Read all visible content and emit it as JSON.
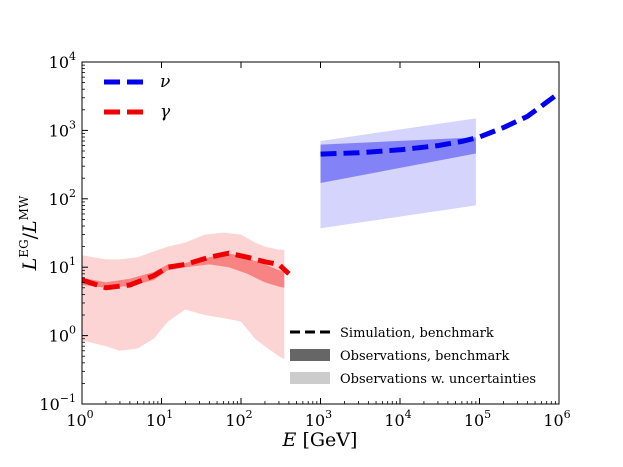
{
  "chart_data": {
    "type": "line",
    "title": "",
    "xlabel": "E [GeV]",
    "ylabel": "L^EG / L^MW",
    "xscale": "log",
    "yscale": "log",
    "xlim": [
      1,
      1000000
    ],
    "ylim": [
      0.1,
      10000
    ],
    "grid": false,
    "x_tick_labels": [
      {
        "base": "10",
        "exp": "0"
      },
      {
        "base": "10",
        "exp": "1"
      },
      {
        "base": "10",
        "exp": "2"
      },
      {
        "base": "10",
        "exp": "3"
      },
      {
        "base": "10",
        "exp": "4"
      },
      {
        "base": "10",
        "exp": "5"
      },
      {
        "base": "10",
        "exp": "6"
      }
    ],
    "y_tick_labels": [
      {
        "base": "10",
        "exp": "−1"
      },
      {
        "base": "10",
        "exp": "0"
      },
      {
        "base": "10",
        "exp": "1"
      },
      {
        "base": "10",
        "exp": "2"
      },
      {
        "base": "10",
        "exp": "3"
      },
      {
        "base": "10",
        "exp": "4"
      }
    ],
    "series": [
      {
        "name": "ν",
        "color": "#0000ee",
        "line": {
          "x": [
            1000,
            3000,
            10000,
            30000,
            60000,
            100000,
            200000,
            400000,
            1000000
          ],
          "y": [
            450,
            470,
            520,
            600,
            690,
            800,
            1100,
            1600,
            3500
          ]
        },
        "band_benchmark": {
          "x": [
            1000,
            90000
          ],
          "lower": [
            170,
            460
          ],
          "upper": [
            620,
            790
          ]
        },
        "band_uncertainty": {
          "x": [
            1000,
            90000
          ],
          "lower": [
            37,
            80
          ],
          "upper": [
            700,
            1500
          ]
        }
      },
      {
        "name": "γ",
        "color": "#ee0000",
        "line": {
          "x": [
            1,
            2,
            4,
            8,
            12,
            20,
            40,
            70,
            120,
            200,
            300,
            400
          ],
          "y": [
            6.5,
            5.0,
            5.5,
            7.5,
            10,
            11,
            14,
            16,
            14,
            12,
            11,
            8
          ]
        },
        "band_benchmark": {
          "x": [
            1,
            2,
            4,
            8,
            12,
            20,
            40,
            70,
            120,
            200,
            300,
            350
          ],
          "lower": [
            5.5,
            5.0,
            5.3,
            6.5,
            9.0,
            10.0,
            11.0,
            10.0,
            8.0,
            6.0,
            5.2,
            5.0
          ],
          "upper": [
            7.0,
            6.0,
            6.8,
            8.5,
            11.0,
            11.5,
            14.0,
            16.0,
            13.5,
            11.0,
            9.0,
            8.5
          ]
        },
        "band_uncertainty": {
          "x": [
            1,
            2,
            3,
            5,
            8,
            12,
            20,
            35,
            60,
            100,
            150,
            200,
            300,
            350
          ],
          "lower": [
            0.85,
            0.7,
            0.6,
            0.65,
            0.9,
            1.6,
            2.4,
            2.0,
            1.8,
            1.6,
            0.9,
            0.7,
            0.5,
            0.45
          ],
          "upper": [
            15,
            13,
            13,
            14,
            17,
            20,
            23,
            30,
            32,
            30,
            23,
            20,
            18,
            18
          ]
        }
      }
    ],
    "legend_series": {
      "position": "top-left",
      "entries": [
        {
          "label": "ν",
          "color": "#0000ee"
        },
        {
          "label": "γ",
          "color": "#ee0000"
        }
      ]
    },
    "legend_style": {
      "position": "bottom-right",
      "entries": [
        {
          "label": "Simulation, benchmark",
          "style": "dashed-line",
          "color": "#000000"
        },
        {
          "label": "Observations, benchmark",
          "style": "band",
          "color": "#666666"
        },
        {
          "label": "Observations w. uncertainties",
          "style": "band",
          "color": "#cccccc"
        }
      ]
    }
  }
}
